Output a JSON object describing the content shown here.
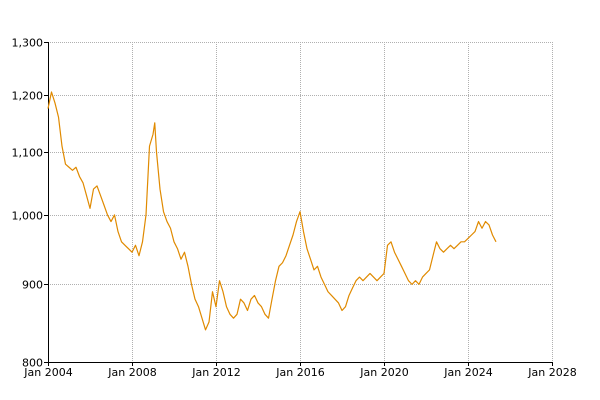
{
  "chart_data": {
    "type": "line",
    "title": "",
    "xlabel": "",
    "ylabel": "",
    "y_scale": "log",
    "grid": true,
    "legend": "none",
    "xlim": [
      "2004-01",
      "2028-01"
    ],
    "ylim": [
      800,
      1300
    ],
    "x_ticks": [
      {
        "value": "2004-01",
        "label": "Jan 2004"
      },
      {
        "value": "2008-01",
        "label": "Jan 2008"
      },
      {
        "value": "2012-01",
        "label": "Jan 2012"
      },
      {
        "value": "2016-01",
        "label": "Jan 2016"
      },
      {
        "value": "2020-01",
        "label": "Jan 2020"
      },
      {
        "value": "2024-01",
        "label": "Jan 2024"
      },
      {
        "value": "2028-01",
        "label": "Jan 2028"
      }
    ],
    "y_ticks": [
      {
        "value": 800,
        "label": "800"
      },
      {
        "value": 900,
        "label": "900"
      },
      {
        "value": 1000,
        "label": "1,000"
      },
      {
        "value": 1100,
        "label": "1,100"
      },
      {
        "value": 1200,
        "label": "1,200"
      },
      {
        "value": 1300,
        "label": "1,300"
      }
    ],
    "series": [
      {
        "color": "#e08a00",
        "points": [
          [
            "2004-01",
            1175
          ],
          [
            "2004-03",
            1205
          ],
          [
            "2004-05",
            1185
          ],
          [
            "2004-07",
            1160
          ],
          [
            "2004-09",
            1110
          ],
          [
            "2004-11",
            1080
          ],
          [
            "2005-01",
            1075
          ],
          [
            "2005-03",
            1070
          ],
          [
            "2005-05",
            1075
          ],
          [
            "2005-07",
            1060
          ],
          [
            "2005-09",
            1050
          ],
          [
            "2005-11",
            1030
          ],
          [
            "2006-01",
            1010
          ],
          [
            "2006-03",
            1040
          ],
          [
            "2006-05",
            1045
          ],
          [
            "2006-07",
            1030
          ],
          [
            "2006-09",
            1015
          ],
          [
            "2006-11",
            1000
          ],
          [
            "2007-01",
            990
          ],
          [
            "2007-03",
            1000
          ],
          [
            "2007-05",
            975
          ],
          [
            "2007-07",
            960
          ],
          [
            "2007-09",
            955
          ],
          [
            "2007-11",
            950
          ],
          [
            "2008-01",
            945
          ],
          [
            "2008-03",
            955
          ],
          [
            "2008-05",
            940
          ],
          [
            "2008-07",
            960
          ],
          [
            "2008-09",
            1000
          ],
          [
            "2008-11",
            1110
          ],
          [
            "2009-01",
            1130
          ],
          [
            "2009-02",
            1150
          ],
          [
            "2009-03",
            1100
          ],
          [
            "2009-05",
            1040
          ],
          [
            "2009-07",
            1005
          ],
          [
            "2009-09",
            990
          ],
          [
            "2009-11",
            980
          ],
          [
            "2010-01",
            960
          ],
          [
            "2010-03",
            950
          ],
          [
            "2010-05",
            935
          ],
          [
            "2010-07",
            945
          ],
          [
            "2010-09",
            925
          ],
          [
            "2010-11",
            900
          ],
          [
            "2011-01",
            880
          ],
          [
            "2011-03",
            870
          ],
          [
            "2011-05",
            855
          ],
          [
            "2011-07",
            840
          ],
          [
            "2011-09",
            850
          ],
          [
            "2011-11",
            890
          ],
          [
            "2012-01",
            870
          ],
          [
            "2012-03",
            905
          ],
          [
            "2012-05",
            890
          ],
          [
            "2012-07",
            870
          ],
          [
            "2012-09",
            860
          ],
          [
            "2012-11",
            855
          ],
          [
            "2013-01",
            860
          ],
          [
            "2013-03",
            880
          ],
          [
            "2013-05",
            875
          ],
          [
            "2013-07",
            865
          ],
          [
            "2013-09",
            880
          ],
          [
            "2013-11",
            885
          ],
          [
            "2014-01",
            875
          ],
          [
            "2014-03",
            870
          ],
          [
            "2014-05",
            860
          ],
          [
            "2014-07",
            855
          ],
          [
            "2014-09",
            880
          ],
          [
            "2014-11",
            905
          ],
          [
            "2015-01",
            925
          ],
          [
            "2015-03",
            930
          ],
          [
            "2015-05",
            940
          ],
          [
            "2015-07",
            955
          ],
          [
            "2015-09",
            970
          ],
          [
            "2015-11",
            990
          ],
          [
            "2016-01",
            1005
          ],
          [
            "2016-03",
            975
          ],
          [
            "2016-05",
            950
          ],
          [
            "2016-07",
            935
          ],
          [
            "2016-09",
            920
          ],
          [
            "2016-11",
            925
          ],
          [
            "2017-01",
            910
          ],
          [
            "2017-03",
            900
          ],
          [
            "2017-05",
            890
          ],
          [
            "2017-07",
            885
          ],
          [
            "2017-09",
            880
          ],
          [
            "2017-11",
            875
          ],
          [
            "2018-01",
            865
          ],
          [
            "2018-03",
            870
          ],
          [
            "2018-05",
            885
          ],
          [
            "2018-07",
            895
          ],
          [
            "2018-09",
            905
          ],
          [
            "2018-11",
            910
          ],
          [
            "2019-01",
            905
          ],
          [
            "2019-03",
            910
          ],
          [
            "2019-05",
            915
          ],
          [
            "2019-07",
            910
          ],
          [
            "2019-09",
            905
          ],
          [
            "2019-11",
            910
          ],
          [
            "2020-01",
            915
          ],
          [
            "2020-03",
            955
          ],
          [
            "2020-05",
            960
          ],
          [
            "2020-07",
            945
          ],
          [
            "2020-09",
            935
          ],
          [
            "2020-11",
            925
          ],
          [
            "2021-01",
            915
          ],
          [
            "2021-03",
            905
          ],
          [
            "2021-05",
            900
          ],
          [
            "2021-07",
            905
          ],
          [
            "2021-09",
            900
          ],
          [
            "2021-11",
            910
          ],
          [
            "2022-01",
            915
          ],
          [
            "2022-03",
            920
          ],
          [
            "2022-05",
            940
          ],
          [
            "2022-07",
            960
          ],
          [
            "2022-09",
            950
          ],
          [
            "2022-11",
            945
          ],
          [
            "2023-01",
            950
          ],
          [
            "2023-03",
            955
          ],
          [
            "2023-05",
            950
          ],
          [
            "2023-07",
            955
          ],
          [
            "2023-09",
            960
          ],
          [
            "2023-11",
            960
          ],
          [
            "2024-01",
            965
          ],
          [
            "2024-03",
            970
          ],
          [
            "2024-05",
            975
          ],
          [
            "2024-07",
            990
          ],
          [
            "2024-09",
            980
          ],
          [
            "2024-11",
            990
          ],
          [
            "2025-01",
            985
          ],
          [
            "2025-03",
            970
          ],
          [
            "2025-05",
            960
          ]
        ]
      }
    ]
  }
}
